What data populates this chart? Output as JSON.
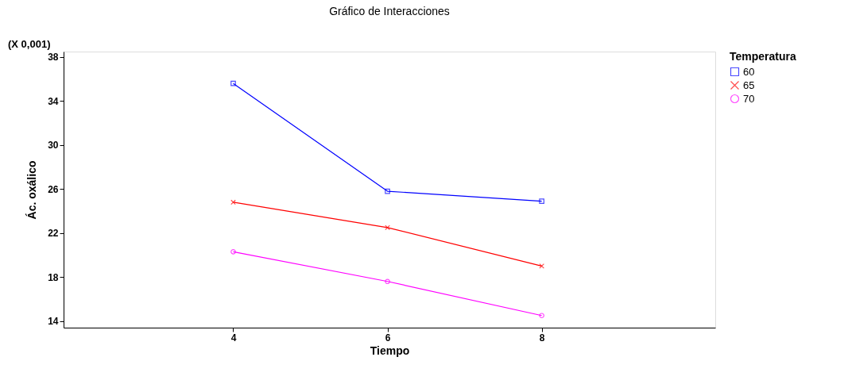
{
  "chart_data": {
    "type": "line",
    "title": "Gráfico de Interacciones",
    "xlabel": "Tiempo",
    "ylabel": "Ác. oxálico",
    "legend_title": "Temperatura",
    "annotations": [
      "(X 0,001)"
    ],
    "x": [
      4,
      6,
      8
    ],
    "xlim": [
      1.8,
      10.25
    ],
    "xticks": [
      4,
      6,
      8
    ],
    "ylim": [
      13.4,
      38.5
    ],
    "yticks": [
      14,
      18,
      22,
      26,
      30,
      34,
      38
    ],
    "grid": false,
    "legend": "top right",
    "line_style": "solid",
    "series": [
      {
        "name": "60",
        "color": "#0000ff",
        "marker": "square",
        "values": [
          35.6,
          25.8,
          24.9
        ]
      },
      {
        "name": "65",
        "color": "#ff0000",
        "marker": "cross",
        "values": [
          24.8,
          22.5,
          19.0
        ]
      },
      {
        "name": "70",
        "color": "#ff00ff",
        "marker": "circle",
        "values": [
          20.3,
          17.6,
          14.5
        ]
      }
    ]
  }
}
